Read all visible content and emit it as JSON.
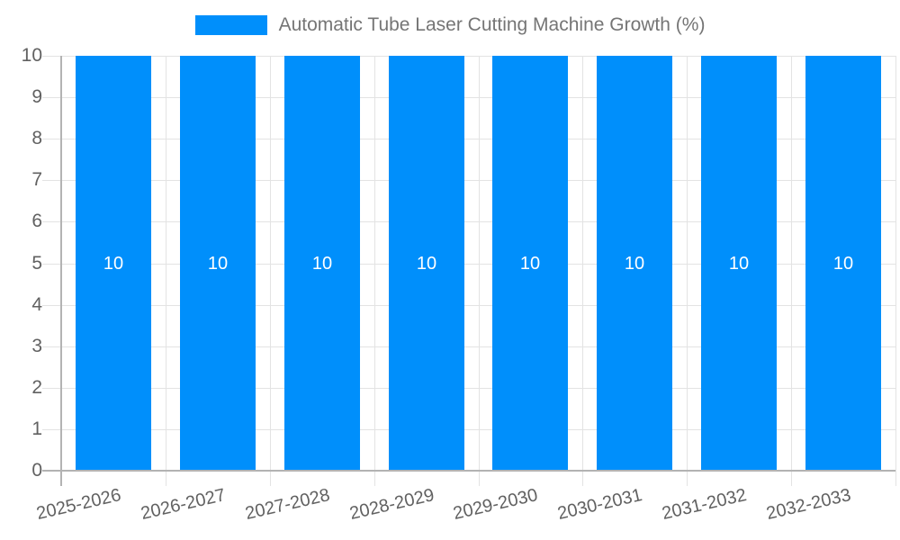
{
  "chart_data": {
    "type": "bar",
    "title": "Automatic Tube Laser Cutting Machine Growth (%)",
    "categories": [
      "2025-2026",
      "2026-2027",
      "2027-2028",
      "2028-2029",
      "2029-2030",
      "2030-2031",
      "2031-2032",
      "2032-2033"
    ],
    "series": [
      {
        "name": "Automatic Tube Laser Cutting Machine Growth (%)",
        "values": [
          10,
          10,
          10,
          10,
          10,
          10,
          10,
          10
        ]
      }
    ],
    "bar_value_labels": [
      "10",
      "10",
      "10",
      "10",
      "10",
      "10",
      "10",
      "10"
    ],
    "xlabel": "",
    "ylabel": "",
    "ylim": [
      0,
      10
    ],
    "y_ticks": [
      0,
      1,
      2,
      3,
      4,
      5,
      6,
      7,
      8,
      9,
      10
    ],
    "grid": true,
    "legend_position": "top-center",
    "colors": {
      "bar": "#008FFB",
      "bar_value_text": "#ffffff",
      "gridline": "#e3e3e3",
      "axis_line": "#b3b3b3",
      "axis_tick_text": "#616161",
      "legend_text": "#757575",
      "background": "#ffffff"
    }
  },
  "legend": {
    "label": "Automatic Tube Laser Cutting Machine Growth (%)"
  }
}
